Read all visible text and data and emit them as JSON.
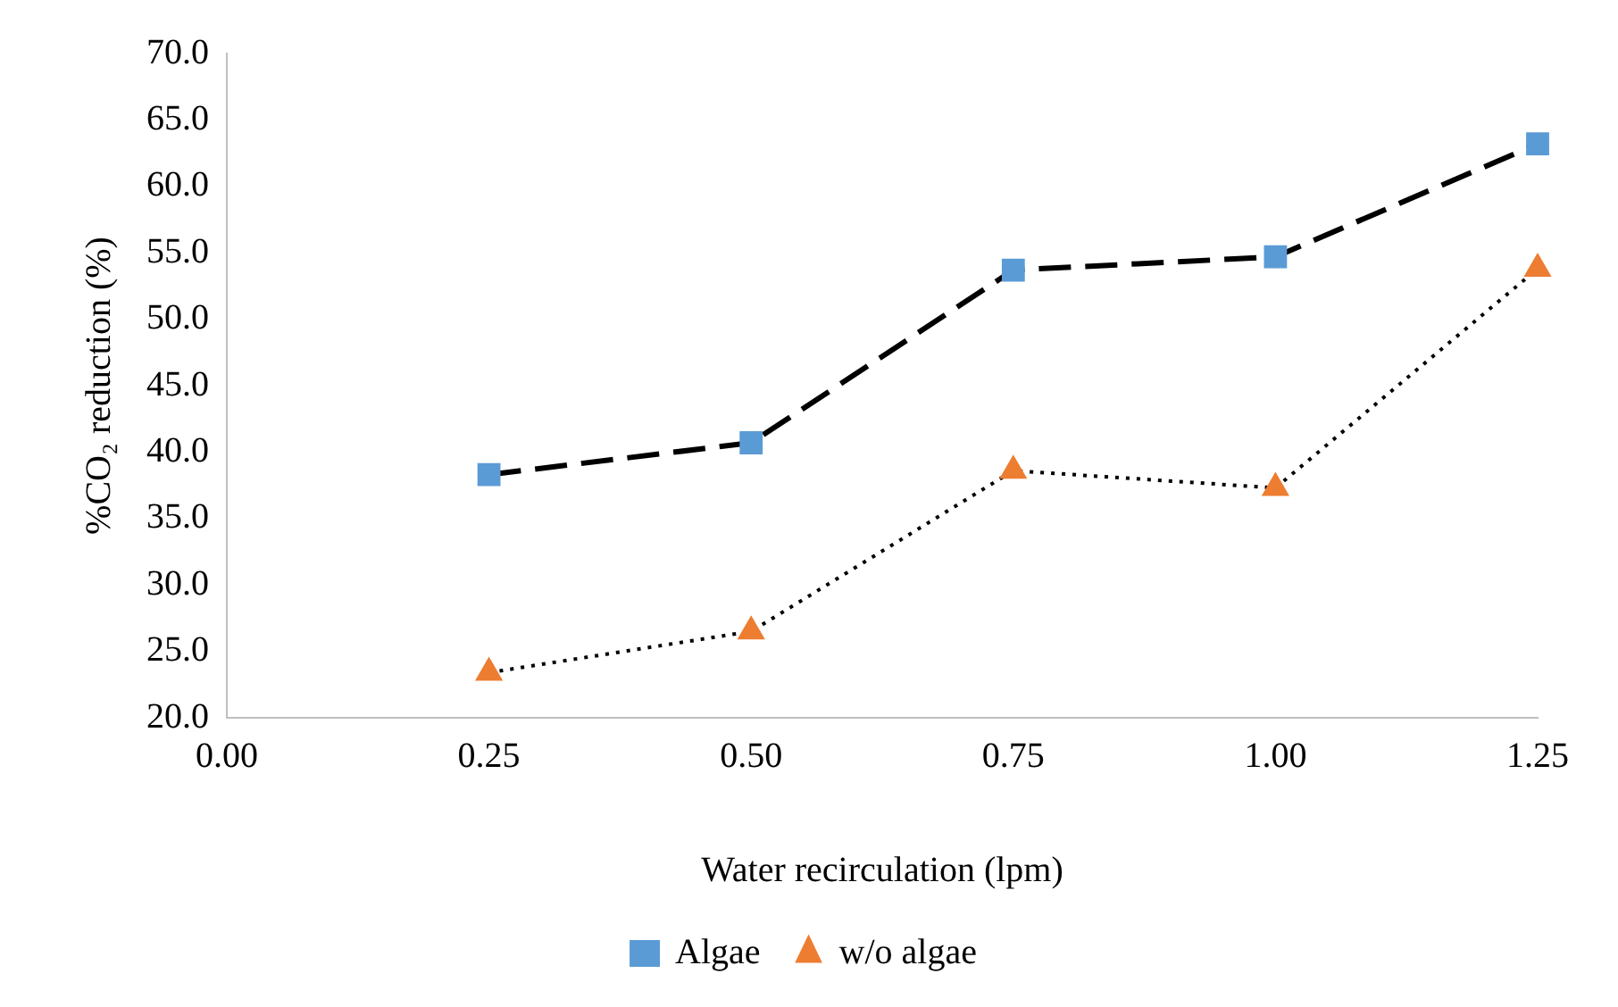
{
  "chart_data": {
    "type": "line",
    "xlabel": "Water recirculation (lpm)",
    "ylabel": "%CO₂ reduction (%)",
    "x": [
      0.25,
      0.5,
      0.75,
      1.0,
      1.25
    ],
    "series": [
      {
        "name": "Algae",
        "color": "#5b9bd5",
        "values": [
          38.3,
          40.7,
          53.7,
          54.7,
          63.2
        ],
        "marker": "square",
        "line_style": "dashed"
      },
      {
        "name": "w/o algae",
        "color": "#ed7d31",
        "values": [
          23.4,
          26.5,
          38.6,
          37.3,
          53.8
        ],
        "marker": "triangle",
        "line_style": "dotted"
      }
    ],
    "xlim": [
      0,
      1.25
    ],
    "xticks": [
      {
        "value": 0,
        "label": "0.00"
      },
      {
        "value": 0.25,
        "label": "0.25"
      },
      {
        "value": 0.5,
        "label": "0.50"
      },
      {
        "value": 0.75,
        "label": "0.75"
      },
      {
        "value": 1.0,
        "label": "1.00"
      },
      {
        "value": 1.25,
        "label": "1.25"
      }
    ],
    "ylim": [
      20,
      70
    ],
    "yticks": [
      {
        "value": 20,
        "label": "20.0"
      },
      {
        "value": 25,
        "label": "25.0"
      },
      {
        "value": 30,
        "label": "30.0"
      },
      {
        "value": 35,
        "label": "35.0"
      },
      {
        "value": 40,
        "label": "40.0"
      },
      {
        "value": 45,
        "label": "45.0"
      },
      {
        "value": 50,
        "label": "50.0"
      },
      {
        "value": 55,
        "label": "55.0"
      },
      {
        "value": 60,
        "label": "60.0"
      },
      {
        "value": 65,
        "label": "65.0"
      },
      {
        "value": 70,
        "label": "70.0"
      }
    ],
    "grid": false,
    "legend": "bottom"
  }
}
